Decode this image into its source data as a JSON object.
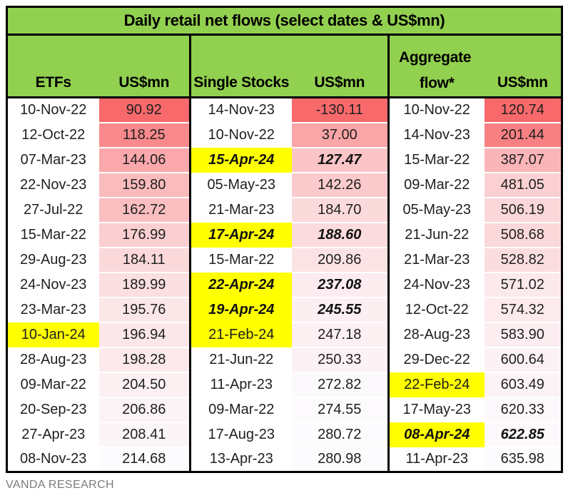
{
  "title": "Daily retail net flows (select dates & US$mn)",
  "footer": "VANDA RESEARCH",
  "colors": {
    "header_green": "#92D050",
    "highlight_yellow": "#FFFF00",
    "scale_low": "#F8696B",
    "scale_high": "#FCFCFF",
    "border_black": "#000000",
    "footer_gray": "#7B7B7B",
    "text_dark": "#1F1F1F"
  },
  "chart_data": {
    "type": "table",
    "title": "Daily retail net flows (select dates & US$mn)",
    "layout_hint": "three side-by-side sections, each with a date column and a US$mn value column; value cells shaded on a red-to-white scale per column (red = lowest); yellow cells mark 2024 dates; bold-italic marks April-2024 dates",
    "sections": [
      {
        "label": "ETFs",
        "value_header": "US$mn",
        "rows": [
          {
            "date": "10-Nov-22",
            "value": 90.92,
            "highlight": false,
            "emph": false
          },
          {
            "date": "12-Oct-22",
            "value": 118.25,
            "highlight": false,
            "emph": false
          },
          {
            "date": "07-Mar-23",
            "value": 144.06,
            "highlight": false,
            "emph": false
          },
          {
            "date": "22-Nov-23",
            "value": 159.8,
            "highlight": false,
            "emph": false
          },
          {
            "date": "27-Jul-22",
            "value": 162.72,
            "highlight": false,
            "emph": false
          },
          {
            "date": "15-Mar-22",
            "value": 176.99,
            "highlight": false,
            "emph": false
          },
          {
            "date": "29-Aug-23",
            "value": 184.11,
            "highlight": false,
            "emph": false
          },
          {
            "date": "24-Nov-23",
            "value": 189.99,
            "highlight": false,
            "emph": false
          },
          {
            "date": "23-Mar-23",
            "value": 195.76,
            "highlight": false,
            "emph": false
          },
          {
            "date": "10-Jan-24",
            "value": 196.94,
            "highlight": true,
            "emph": false
          },
          {
            "date": "28-Aug-23",
            "value": 198.28,
            "highlight": false,
            "emph": false
          },
          {
            "date": "09-Mar-22",
            "value": 204.5,
            "highlight": false,
            "emph": false
          },
          {
            "date": "20-Sep-23",
            "value": 206.86,
            "highlight": false,
            "emph": false
          },
          {
            "date": "27-Apr-23",
            "value": 208.41,
            "highlight": false,
            "emph": false
          },
          {
            "date": "08-Nov-23",
            "value": 214.68,
            "highlight": false,
            "emph": false
          }
        ]
      },
      {
        "label": "Single Stocks",
        "value_header": "US$mn",
        "rows": [
          {
            "date": "14-Nov-23",
            "value": -130.11,
            "highlight": false,
            "emph": false
          },
          {
            "date": "10-Nov-22",
            "value": 37.0,
            "highlight": false,
            "emph": false
          },
          {
            "date": "15-Apr-24",
            "value": 127.47,
            "highlight": true,
            "emph": true
          },
          {
            "date": "05-May-23",
            "value": 142.26,
            "highlight": false,
            "emph": false
          },
          {
            "date": "21-Mar-23",
            "value": 184.7,
            "highlight": false,
            "emph": false
          },
          {
            "date": "17-Apr-24",
            "value": 188.6,
            "highlight": true,
            "emph": true
          },
          {
            "date": "15-Mar-22",
            "value": 209.86,
            "highlight": false,
            "emph": false
          },
          {
            "date": "22-Apr-24",
            "value": 237.08,
            "highlight": true,
            "emph": true
          },
          {
            "date": "19-Apr-24",
            "value": 245.55,
            "highlight": true,
            "emph": true
          },
          {
            "date": "21-Feb-24",
            "value": 247.18,
            "highlight": true,
            "emph": false
          },
          {
            "date": "21-Jun-22",
            "value": 250.33,
            "highlight": false,
            "emph": false
          },
          {
            "date": "11-Apr-23",
            "value": 272.82,
            "highlight": false,
            "emph": false
          },
          {
            "date": "09-Mar-22",
            "value": 274.55,
            "highlight": false,
            "emph": false
          },
          {
            "date": "17-Aug-23",
            "value": 280.72,
            "highlight": false,
            "emph": false
          },
          {
            "date": "13-Apr-23",
            "value": 280.98,
            "highlight": false,
            "emph": false
          }
        ]
      },
      {
        "label": "Aggregate flow*",
        "label_lines": [
          "Aggregate",
          "flow*"
        ],
        "value_header": "US$mn",
        "rows": [
          {
            "date": "10-Nov-22",
            "value": 120.74,
            "highlight": false,
            "emph": false
          },
          {
            "date": "14-Nov-23",
            "value": 201.44,
            "highlight": false,
            "emph": false
          },
          {
            "date": "15-Mar-22",
            "value": 387.07,
            "highlight": false,
            "emph": false
          },
          {
            "date": "09-Mar-22",
            "value": 481.05,
            "highlight": false,
            "emph": false
          },
          {
            "date": "05-May-23",
            "value": 506.19,
            "highlight": false,
            "emph": false
          },
          {
            "date": "21-Jun-22",
            "value": 508.68,
            "highlight": false,
            "emph": false
          },
          {
            "date": "21-Mar-23",
            "value": 528.82,
            "highlight": false,
            "emph": false
          },
          {
            "date": "24-Nov-23",
            "value": 571.02,
            "highlight": false,
            "emph": false
          },
          {
            "date": "12-Oct-22",
            "value": 574.32,
            "highlight": false,
            "emph": false
          },
          {
            "date": "28-Aug-23",
            "value": 583.9,
            "highlight": false,
            "emph": false
          },
          {
            "date": "29-Dec-22",
            "value": 600.64,
            "highlight": false,
            "emph": false
          },
          {
            "date": "22-Feb-24",
            "value": 603.49,
            "highlight": true,
            "emph": false
          },
          {
            "date": "17-May-23",
            "value": 620.33,
            "highlight": false,
            "emph": false
          },
          {
            "date": "08-Apr-24",
            "value": 622.85,
            "highlight": true,
            "emph": true
          },
          {
            "date": "11-Apr-23",
            "value": 635.98,
            "highlight": false,
            "emph": false
          }
        ]
      }
    ]
  }
}
